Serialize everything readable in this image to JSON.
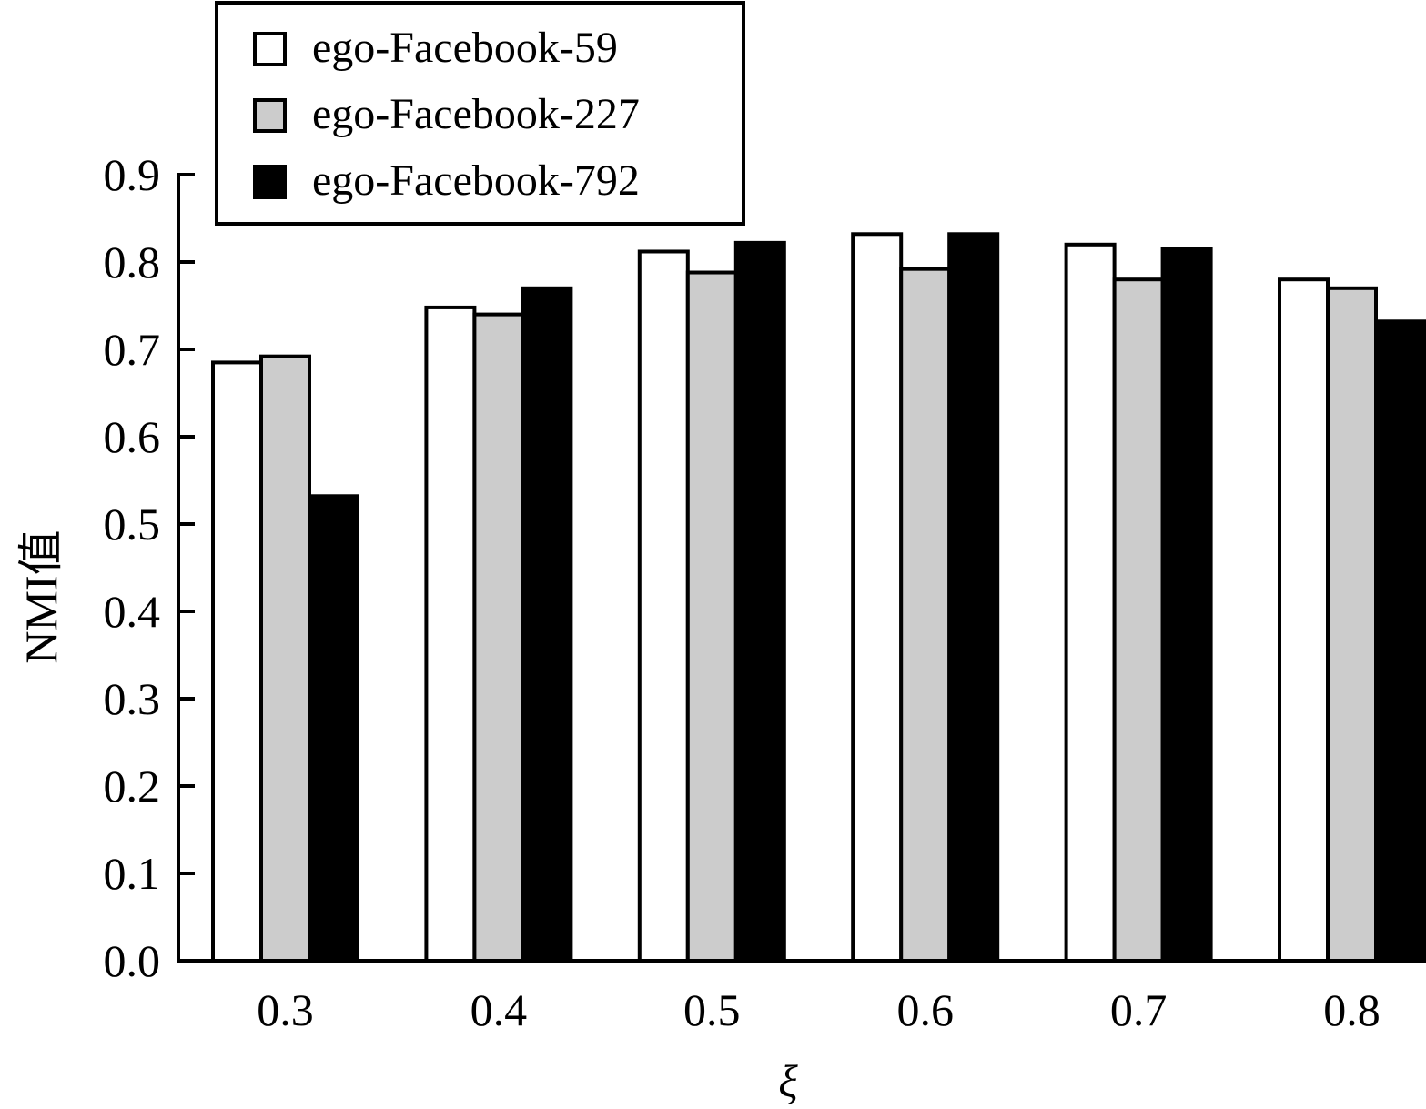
{
  "chart_data": {
    "type": "bar",
    "title": "",
    "xlabel": "ξ",
    "ylabel": "NMI值",
    "categories": [
      "0.3",
      "0.4",
      "0.5",
      "0.6",
      "0.7",
      "0.8"
    ],
    "ylim": [
      0,
      0.9
    ],
    "yticks": [
      "0.0",
      "0.1",
      "0.2",
      "0.3",
      "0.4",
      "0.5",
      "0.6",
      "0.7",
      "0.8",
      "0.9"
    ],
    "grid": false,
    "legend_position": "top-left",
    "series": [
      {
        "name": "ego-Facebook-59",
        "color": "#ffffff",
        "values": [
          0.685,
          0.748,
          0.812,
          0.832,
          0.82,
          0.78
        ]
      },
      {
        "name": "ego-Facebook-227",
        "color": "#cccccc",
        "values": [
          0.692,
          0.74,
          0.788,
          0.792,
          0.78,
          0.77
        ]
      },
      {
        "name": "ego-Facebook-792",
        "color": "#000000",
        "values": [
          0.532,
          0.77,
          0.822,
          0.832,
          0.815,
          0.732
        ]
      }
    ]
  }
}
